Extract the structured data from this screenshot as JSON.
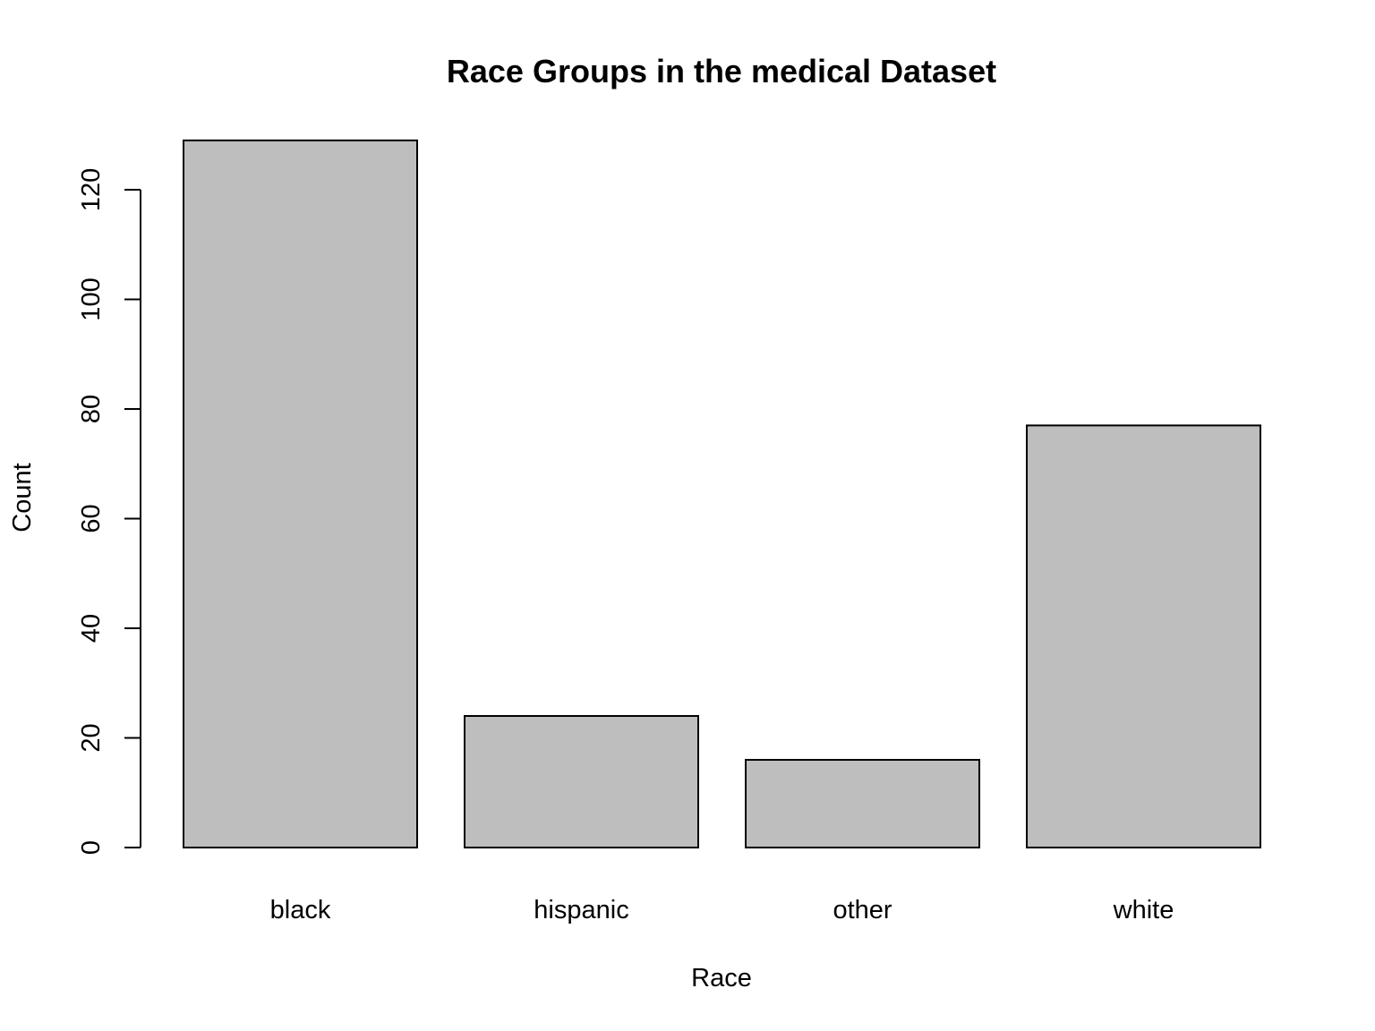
{
  "chart_data": {
    "type": "bar",
    "title": "Race Groups in the medical Dataset",
    "xlabel": "Race",
    "ylabel": "Count",
    "categories": [
      "black",
      "hispanic",
      "other",
      "white"
    ],
    "values": [
      129,
      24,
      16,
      77
    ],
    "ylim": [
      0,
      129
    ],
    "yticks": [
      0,
      20,
      40,
      60,
      80,
      100,
      120
    ],
    "grid": false,
    "bar_fill": "#bebebe",
    "bar_stroke": "#000000"
  }
}
